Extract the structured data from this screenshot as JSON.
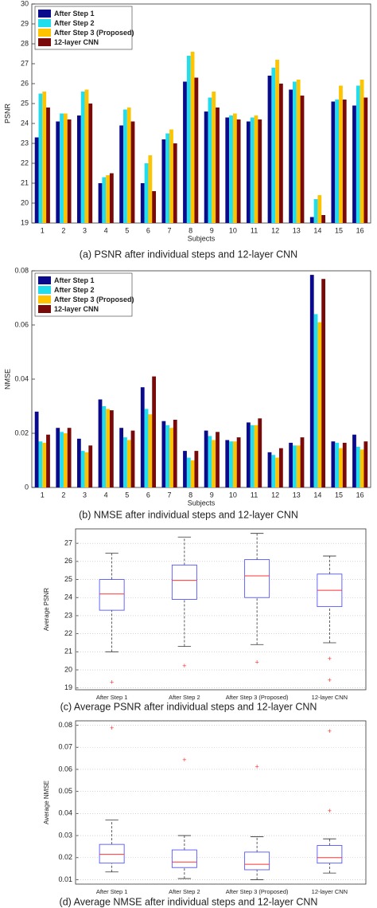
{
  "chart_data": [
    {
      "type": "bar",
      "caption": "(a) PSNR after individual steps and 12-layer CNN",
      "ylabel": "PSNR",
      "xlabel": "Subjects",
      "categories": [
        "1",
        "2",
        "3",
        "4",
        "5",
        "6",
        "7",
        "8",
        "9",
        "10",
        "11",
        "12",
        "13",
        "14",
        "15",
        "16"
      ],
      "series": [
        {
          "name": "After Step 1",
          "color": "#0a0a8c",
          "values": [
            23.3,
            24.1,
            24.4,
            21.0,
            23.9,
            21.0,
            23.2,
            26.1,
            24.6,
            24.3,
            24.1,
            26.4,
            25.7,
            19.3,
            25.1,
            24.9
          ]
        },
        {
          "name": "After Step 2",
          "color": "#22ddee",
          "values": [
            25.5,
            24.5,
            25.6,
            21.3,
            24.7,
            22.0,
            23.5,
            27.4,
            25.3,
            24.4,
            24.3,
            26.8,
            26.1,
            20.2,
            25.2,
            25.9
          ]
        },
        {
          "name": "After Step 3 (Proposed)",
          "color": "#ffc400",
          "values": [
            25.6,
            24.5,
            25.7,
            21.4,
            24.8,
            22.4,
            23.7,
            27.6,
            25.6,
            24.5,
            24.4,
            27.2,
            26.2,
            20.4,
            25.9,
            26.2
          ]
        },
        {
          "name": "12-layer CNN",
          "color": "#7a0a0a",
          "values": [
            24.8,
            24.2,
            25.0,
            21.5,
            24.1,
            20.6,
            23.0,
            26.3,
            24.8,
            24.2,
            24.2,
            26.0,
            25.4,
            19.4,
            25.2,
            25.3
          ]
        }
      ],
      "ylim": [
        19,
        30
      ],
      "yticks": [
        19,
        20,
        21,
        22,
        23,
        24,
        25,
        26,
        27,
        28,
        29,
        30
      ],
      "grid": false,
      "legend": "upper-left"
    },
    {
      "type": "bar",
      "caption": "(b) NMSE after individual steps and 12-layer CNN",
      "ylabel": "NMSE",
      "xlabel": "Subjects",
      "categories": [
        "1",
        "2",
        "3",
        "4",
        "5",
        "6",
        "7",
        "8",
        "9",
        "10",
        "11",
        "12",
        "13",
        "14",
        "15",
        "16"
      ],
      "series": [
        {
          "name": "After Step 1",
          "color": "#0a0a8c",
          "values": [
            0.028,
            0.022,
            0.018,
            0.0325,
            0.022,
            0.037,
            0.0245,
            0.0135,
            0.021,
            0.0175,
            0.024,
            0.013,
            0.0165,
            0.0785,
            0.017,
            0.0195
          ]
        },
        {
          "name": "After Step 2",
          "color": "#22ddee",
          "values": [
            0.017,
            0.0205,
            0.0135,
            0.03,
            0.0185,
            0.029,
            0.023,
            0.011,
            0.019,
            0.017,
            0.023,
            0.012,
            0.0155,
            0.064,
            0.0165,
            0.015
          ]
        },
        {
          "name": "After Step 3 (Proposed)",
          "color": "#ffc400",
          "values": [
            0.0165,
            0.02,
            0.013,
            0.029,
            0.0175,
            0.027,
            0.022,
            0.01,
            0.0175,
            0.017,
            0.023,
            0.011,
            0.0155,
            0.061,
            0.0145,
            0.014
          ]
        },
        {
          "name": "12-layer CNN",
          "color": "#7a0a0a",
          "values": [
            0.0195,
            0.022,
            0.0155,
            0.0285,
            0.021,
            0.041,
            0.025,
            0.0135,
            0.0205,
            0.0185,
            0.0255,
            0.0145,
            0.0185,
            0.077,
            0.0165,
            0.017
          ]
        }
      ],
      "ylim": [
        0,
        0.08
      ],
      "yticks": [
        0,
        0.02,
        0.04,
        0.06,
        0.08
      ],
      "grid": false,
      "legend": "upper-left"
    },
    {
      "type": "box",
      "caption": "(c) Average PSNR after individual steps and 12-layer CNN",
      "ylabel": "Average PSNR",
      "categories": [
        "After Step 1",
        "After Step 2",
        "After Step 3 (Proposed)",
        "12-layer CNN"
      ],
      "boxes": [
        {
          "whisker_low": 21.0,
          "q1": 23.3,
          "median": 24.2,
          "q3": 25.0,
          "whisker_high": 26.45,
          "outliers": [
            19.3
          ]
        },
        {
          "whisker_low": 21.3,
          "q1": 23.9,
          "median": 24.95,
          "q3": 25.8,
          "whisker_high": 27.35,
          "outliers": [
            20.2
          ]
        },
        {
          "whisker_low": 21.4,
          "q1": 24.0,
          "median": 25.2,
          "q3": 26.1,
          "whisker_high": 27.55,
          "outliers": [
            20.4
          ]
        },
        {
          "whisker_low": 21.5,
          "q1": 23.5,
          "median": 24.4,
          "q3": 25.3,
          "whisker_high": 26.3,
          "outliers": [
            20.6,
            19.4
          ]
        }
      ],
      "box_color": "#5555ff",
      "median_color": "#ff3333",
      "outlier_color": "#ff3333",
      "ylim": [
        18.9,
        27.8
      ],
      "yticks": [
        19,
        20,
        21,
        22,
        23,
        24,
        25,
        26,
        27
      ],
      "grid": true
    },
    {
      "type": "box",
      "caption": "(d) Average NMSE after individual steps and 12-layer CNN",
      "ylabel": "Average NMSE",
      "categories": [
        "After Step 1",
        "After Step 2",
        "After Step 3 (Proposed)",
        "12-layer CNN"
      ],
      "boxes": [
        {
          "whisker_low": 0.0135,
          "q1": 0.0175,
          "median": 0.0215,
          "q3": 0.026,
          "whisker_high": 0.037,
          "outliers": [
            0.0785
          ]
        },
        {
          "whisker_low": 0.0105,
          "q1": 0.0155,
          "median": 0.018,
          "q3": 0.0235,
          "whisker_high": 0.03,
          "outliers": [
            0.064
          ]
        },
        {
          "whisker_low": 0.01,
          "q1": 0.0145,
          "median": 0.017,
          "q3": 0.0225,
          "whisker_high": 0.0295,
          "outliers": [
            0.061
          ]
        },
        {
          "whisker_low": 0.013,
          "q1": 0.0175,
          "median": 0.02,
          "q3": 0.0255,
          "whisker_high": 0.0285,
          "outliers": [
            0.077,
            0.041
          ]
        }
      ],
      "box_color": "#5555ff",
      "median_color": "#ff3333",
      "outlier_color": "#ff3333",
      "ylim": [
        0.008,
        0.082
      ],
      "yticks": [
        0.01,
        0.02,
        0.03,
        0.04,
        0.05,
        0.06,
        0.07,
        0.08
      ],
      "grid": true
    }
  ]
}
